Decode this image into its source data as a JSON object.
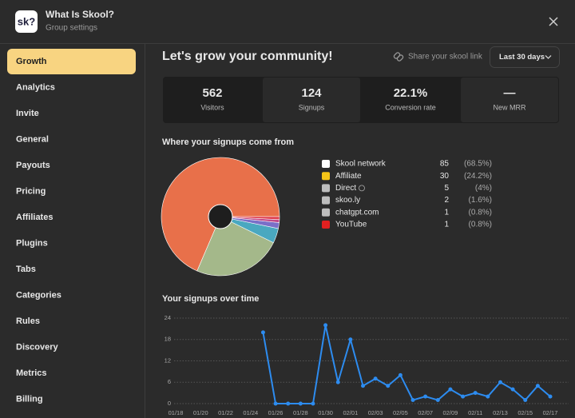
{
  "header": {
    "logo": "sk?",
    "title": "What Is Skool?",
    "subtitle": "Group settings"
  },
  "sidebar": {
    "items": [
      "Growth",
      "Analytics",
      "Invite",
      "General",
      "Payouts",
      "Pricing",
      "Affiliates",
      "Plugins",
      "Tabs",
      "Categories",
      "Rules",
      "Discovery",
      "Metrics",
      "Billing"
    ],
    "active": 0
  },
  "page": {
    "title": "Let's grow your community!",
    "share_link": "Share your skool link",
    "range": "Last 30 days"
  },
  "stats": [
    {
      "value": "562",
      "label": "Visitors"
    },
    {
      "value": "124",
      "label": "Signups"
    },
    {
      "value": "22.1%",
      "label": "Conversion rate"
    },
    {
      "value": "—",
      "label": "New MRR"
    }
  ],
  "chart_data": [
    {
      "type": "pie",
      "title": "Where your signups come from",
      "categories": [
        "Skool network",
        "Affiliate",
        "Direct",
        "skoo.ly",
        "chatgpt.com",
        "YouTube"
      ],
      "values": [
        85,
        30,
        5,
        2,
        1,
        1
      ],
      "shares": [
        68.5,
        24.2,
        4,
        1.6,
        0.8,
        0.8
      ],
      "share_labels": [
        "(68.5%)",
        "(24.2%)",
        "(4%)",
        "(1.6%)",
        "(0.8%)",
        "(0.8%)"
      ],
      "colors": [
        "#e8704a",
        "#a4b88a",
        "#4aa8c0",
        "#7a6fc8",
        "#c04a8a",
        "#e04050"
      ]
    },
    {
      "type": "line",
      "title": "Your signups over time",
      "categories": [
        "01/18",
        null,
        "01/20",
        null,
        "01/22",
        null,
        "01/24",
        null,
        "01/26",
        null,
        "01/28",
        null,
        "01/30",
        null,
        "02/01",
        null,
        "02/03",
        null,
        "02/05",
        null,
        "02/07",
        null,
        "02/09",
        null,
        "02/11",
        null,
        "02/13",
        null,
        "02/15",
        null,
        "02/17"
      ],
      "values": [
        null,
        null,
        null,
        null,
        null,
        null,
        null,
        20,
        0,
        0,
        0,
        0,
        22,
        6,
        18,
        5,
        7,
        5,
        8,
        1,
        2,
        1,
        4,
        2,
        3,
        2,
        6,
        4,
        1,
        5,
        2
      ],
      "color": "#2d8cf0",
      "ylim": [
        0,
        24
      ],
      "yticks": [
        0,
        6,
        12,
        18,
        24
      ],
      "grid": true
    }
  ]
}
